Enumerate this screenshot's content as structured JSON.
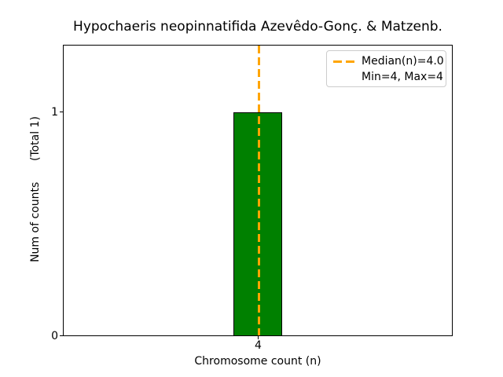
{
  "chart_data": {
    "type": "bar",
    "title": "Hypochaeris neopinnatifida Azevêdo-Gonç. & Matzenb.",
    "xlabel": "Chromosome count (n)",
    "ylabel": "Num of counts      (Total 1)",
    "categories": [
      4
    ],
    "values": [
      1
    ],
    "total_counts": 1,
    "xlim": [
      3.5,
      4.5
    ],
    "ylim": [
      0,
      1.3
    ],
    "xticks": [
      "4"
    ],
    "yticks": [
      "0",
      "1"
    ],
    "grid": false,
    "legend_position": "upper right",
    "legend": [
      {
        "label": "Median(n)=4.0",
        "sample": "orange-dashed-line"
      },
      {
        "label": "Min=4, Max=4",
        "sample": "none"
      }
    ],
    "annotations": [
      {
        "type": "vline",
        "x": 4.0,
        "style": "dashed",
        "color": "#ffa500",
        "label": "Median(n)=4.0"
      }
    ],
    "stats": {
      "median": 4.0,
      "min": 4,
      "max": 4
    },
    "colors": {
      "bar_fill": "#008000",
      "bar_edge": "#000000",
      "median_line": "#ffa500",
      "text": "#000000",
      "legend_border": "#cccccc",
      "background": "#ffffff"
    }
  }
}
